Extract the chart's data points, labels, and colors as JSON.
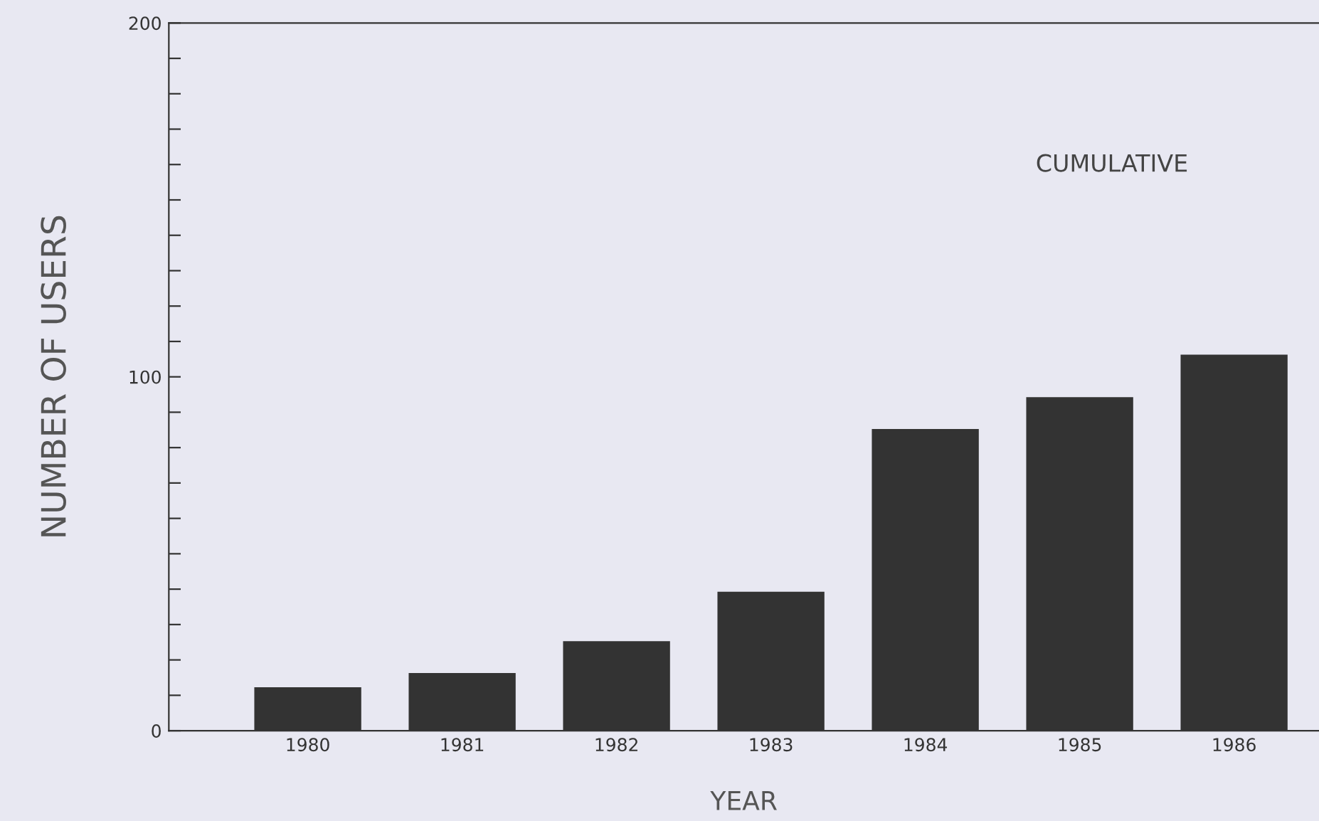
{
  "chart_data": {
    "type": "bar",
    "xlabel": "YEAR",
    "ylabel": "NUMBER OF USERS",
    "annotations": [
      "CUMULATIVE"
    ],
    "categories": [
      "1980",
      "1981",
      "1982",
      "1983",
      "1984",
      "1985",
      "1986"
    ],
    "values": [
      12,
      16,
      25,
      39,
      85,
      94,
      106
    ],
    "color": "#333333",
    "ylim": [
      0,
      200
    ],
    "yticks": [
      0,
      {
        "value": 10,
        "label": null
      },
      {
        "value": 20,
        "label": null
      },
      {
        "value": 30,
        "label": null
      },
      {
        "value": 40,
        "label": null
      },
      {
        "value": 50,
        "label": null
      },
      {
        "value": 60,
        "label": null
      },
      {
        "value": 70,
        "label": null
      },
      {
        "value": 80,
        "label": null
      },
      {
        "value": 90,
        "label": null
      },
      100,
      {
        "value": 110,
        "label": null
      },
      {
        "value": 120,
        "label": null
      },
      {
        "value": 130,
        "label": null
      },
      {
        "value": 140,
        "label": null
      },
      {
        "value": 150,
        "label": null
      },
      {
        "value": 160,
        "label": null
      },
      {
        "value": 170,
        "label": null
      },
      {
        "value": 180,
        "label": null
      },
      {
        "value": 190,
        "label": null
      },
      200
    ],
    "grid": false,
    "legend": false
  }
}
